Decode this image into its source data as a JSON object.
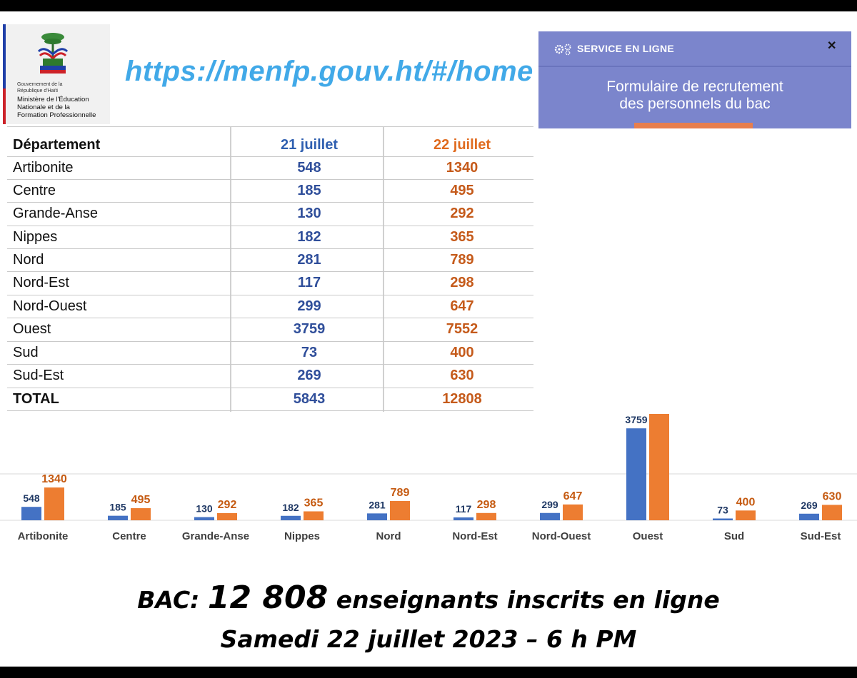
{
  "logo": {
    "small_text": [
      "Gouvernement de la",
      "République d'Haïti"
    ],
    "ministry": [
      "Ministère de l'Éducation",
      "Nationale et de la",
      "Formation Professionnelle"
    ]
  },
  "url": "https://menfp.gouv.ht/#/home",
  "service": {
    "title": "SERVICE EN LIGNE",
    "close": "✕",
    "body_line1": "Formulaire de recrutement",
    "body_line2": "des personnels du bac"
  },
  "table": {
    "headers": [
      "Département",
      "21 juillet",
      "22 juillet"
    ],
    "rows": [
      [
        "Artibonite",
        "548",
        "1340"
      ],
      [
        "Centre",
        "185",
        "495"
      ],
      [
        "Grande-Anse",
        "130",
        "292"
      ],
      [
        "Nippes",
        "182",
        "365"
      ],
      [
        "Nord",
        "281",
        "789"
      ],
      [
        "Nord-Est",
        "117",
        "298"
      ],
      [
        "Nord-Ouest",
        "299",
        "647"
      ],
      [
        "Ouest",
        "3759",
        "7552"
      ],
      [
        "Sud",
        "73",
        "400"
      ],
      [
        "Sud-Est",
        "269",
        "630"
      ]
    ],
    "total": [
      "TOTAL",
      "5843",
      "12808"
    ]
  },
  "chart_data": {
    "type": "bar",
    "categories": [
      "Artibonite",
      "Centre",
      "Grande-Anse",
      "Nippes",
      "Nord",
      "Nord-Est",
      "Nord-Ouest",
      "Ouest",
      "Sud",
      "Sud-Est"
    ],
    "series": [
      {
        "values": [
          548,
          185,
          130,
          182,
          281,
          117,
          299,
          3759,
          73,
          269
        ],
        "color": "#4472c4"
      },
      {
        "values": [
          1340,
          495,
          292,
          365,
          789,
          298,
          647,
          7552,
          400,
          630
        ],
        "color": "#ed7d31"
      }
    ],
    "label_colors": [
      "#1f3864",
      "#c55a11"
    ],
    "grid": true
  },
  "caption": {
    "prefix": "BAC: ",
    "number": "12 808",
    "suffix": " enseignants inscrits en ligne",
    "line2": "Samedi 22 juillet 2023 – 6 h PM"
  }
}
